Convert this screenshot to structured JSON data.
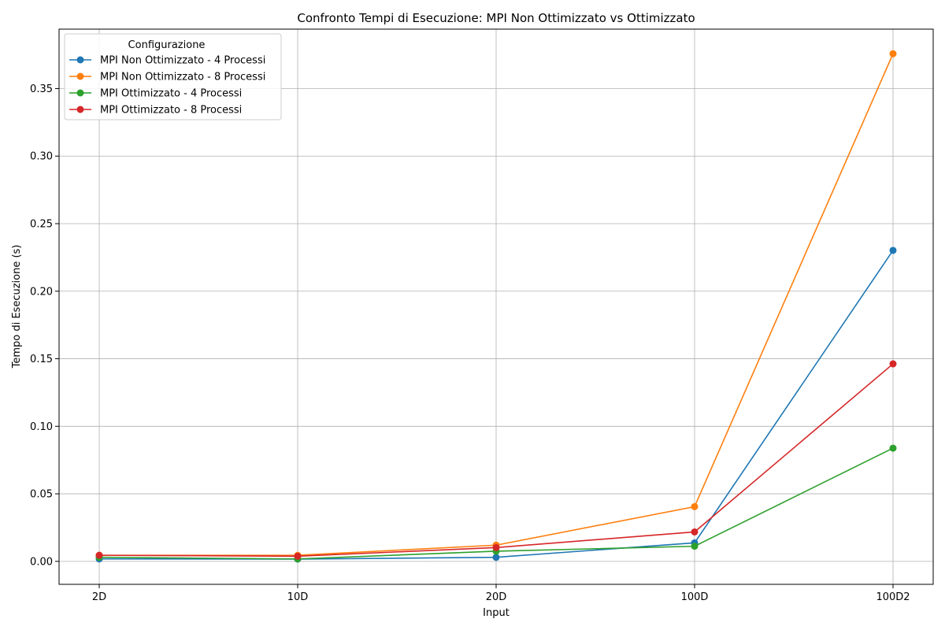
{
  "chart_data": {
    "type": "line",
    "title": "Confronto Tempi di Esecuzione: MPI Non Ottimizzato vs Ottimizzato",
    "xlabel": "Input",
    "ylabel": "Tempo di Esecuzione (s)",
    "categories": [
      "2D",
      "10D",
      "20D",
      "100D",
      "100D2"
    ],
    "ylim": [
      -0.017,
      0.394
    ],
    "yticks": [
      0.0,
      0.05,
      0.1,
      0.15,
      0.2,
      0.25,
      0.3,
      0.35
    ],
    "ytick_labels": [
      "0.00",
      "0.05",
      "0.10",
      "0.15",
      "0.20",
      "0.25",
      "0.30",
      "0.35"
    ],
    "grid": true,
    "legend": {
      "title": "Configurazione",
      "placement": "top-left"
    },
    "series": [
      {
        "name": "MPI Non Ottimizzato - 4 Processi",
        "color": "#1f77b4",
        "values": [
          0.0018,
          0.0017,
          0.003,
          0.0137,
          0.2302
        ]
      },
      {
        "name": "MPI Non Ottimizzato - 8 Processi",
        "color": "#ff7f0e",
        "values": [
          0.0045,
          0.0045,
          0.012,
          0.0405,
          0.3758
        ]
      },
      {
        "name": "MPI Ottimizzato - 4 Processi",
        "color": "#2ca02c",
        "values": [
          0.003,
          0.0018,
          0.0075,
          0.0112,
          0.0838
        ]
      },
      {
        "name": "MPI Ottimizzato - 8 Processi",
        "color": "#d62728",
        "values": [
          0.0045,
          0.0038,
          0.0102,
          0.0218,
          0.1462
        ]
      }
    ]
  }
}
